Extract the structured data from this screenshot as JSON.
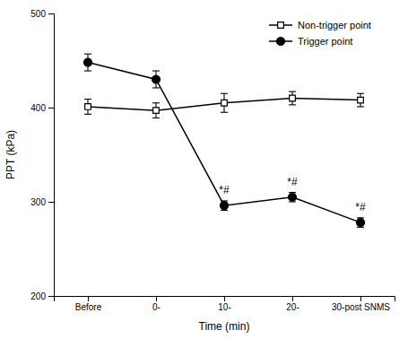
{
  "chart_data": {
    "type": "line",
    "categories": [
      "Before",
      "0-",
      "10-",
      "20-",
      "30-post SNMS"
    ],
    "series": [
      {
        "name": "Non-trigger point",
        "color": "#000000",
        "marker": "square-open",
        "values": [
          401,
          397,
          405,
          410,
          408
        ],
        "errors": [
          8,
          8,
          10,
          7,
          7
        ]
      },
      {
        "name": "Trigger point",
        "color": "#000000",
        "marker": "circle",
        "values": [
          448,
          430,
          296,
          305,
          278
        ],
        "errors": [
          9,
          9,
          5,
          5,
          5
        ]
      }
    ],
    "ylim": [
      200,
      500
    ],
    "yticks": [
      200,
      300,
      400,
      500
    ],
    "ylabel": "PPT (kPa)",
    "xlabel": "Time (min)",
    "annotations": [
      {
        "text": "*#",
        "category": "10-",
        "series": "Trigger point"
      },
      {
        "text": "*#",
        "category": "20-",
        "series": "Trigger point"
      },
      {
        "text": "*#",
        "category": "30-post SNMS",
        "series": "Trigger point"
      }
    ],
    "legend": "upper right",
    "grid": false
  }
}
